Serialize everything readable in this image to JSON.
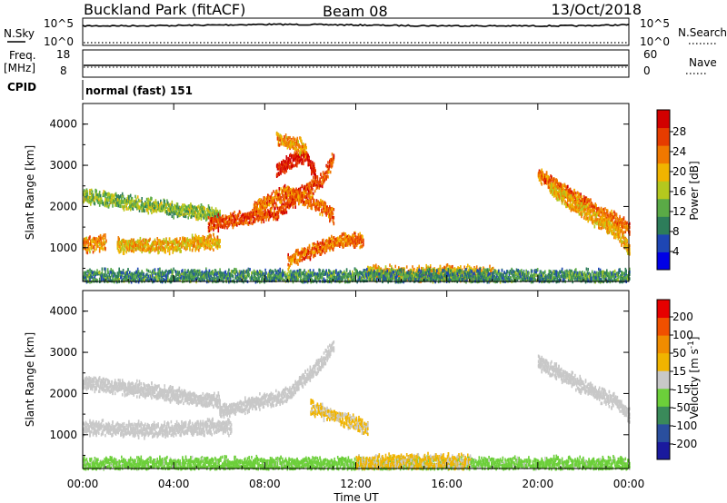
{
  "header": {
    "title": "Buckland Park (fitACF)",
    "beam": "Beam 08",
    "date": "13/Oct/2018"
  },
  "noise_panel": {
    "left_label": "N.Sky",
    "right_label": "N.Search",
    "left_ticks": [
      "10^5",
      "10^0"
    ],
    "right_ticks": [
      "10^5",
      "10^0"
    ]
  },
  "freq_panel": {
    "left_label_1": "Freq.",
    "left_label_2": "[MHz]",
    "right_label": "Nave",
    "left_ticks": [
      "18",
      "8"
    ],
    "right_ticks": [
      "60",
      "0"
    ]
  },
  "cpid_panel": {
    "label": "CPID",
    "text": "normal (fast) 151"
  },
  "x_axis": {
    "label": "Time UT",
    "ticks": [
      "00:00",
      "04:00",
      "08:00",
      "12:00",
      "16:00",
      "20:00",
      "00:00"
    ]
  },
  "power_panel": {
    "ylabel": "Slant Range [km]",
    "yticks": [
      "4000",
      "3000",
      "2000",
      "1000"
    ],
    "cbar_label": "Power [dB]",
    "cbar_ticks": [
      "28",
      "24",
      "20",
      "16",
      "12",
      "8",
      "4"
    ],
    "cbar_colors": [
      "#0000e6",
      "#1e46b4",
      "#2d7d5a",
      "#5aaa46",
      "#b4c81e",
      "#f0b400",
      "#f07800",
      "#e63c00",
      "#d20000"
    ]
  },
  "velocity_panel": {
    "ylabel": "Slant Range [km]",
    "yticks": [
      "4000",
      "3000",
      "2000",
      "1000"
    ],
    "cbar_label": "Velocity [m s^-1]",
    "cbar_ticks": [
      "200",
      "100",
      "50",
      "15",
      "-15",
      "-50",
      "-100",
      "-200"
    ],
    "cbar_colors": [
      "#1a1a9e",
      "#2a4f9e",
      "#3a8a5a",
      "#6ccf3a",
      "#c8c8c8",
      "#f0b400",
      "#f08c00",
      "#f05000",
      "#e60000"
    ]
  },
  "chart_data": [
    {
      "type": "line",
      "title": "N.Sky",
      "x_range_hours": [
        0,
        24
      ],
      "y_scale": "log",
      "series": [
        {
          "name": "N.Sky",
          "x": [
            0,
            2,
            4,
            6,
            8,
            10,
            12,
            14,
            16,
            18,
            20,
            22,
            24
          ],
          "y": [
            3000,
            3200,
            3500,
            4500,
            6000,
            5500,
            4500,
            3500,
            3200,
            3000,
            3000,
            3200,
            5000
          ]
        },
        {
          "name": "N.Search",
          "x": [
            0,
            24
          ],
          "y": [
            1,
            1
          ]
        }
      ]
    },
    {
      "type": "line",
      "title": "Freq.",
      "x_range_hours": [
        0,
        24
      ],
      "series": [
        {
          "name": "Freq.",
          "x": [
            0,
            24
          ],
          "y": [
            10,
            10
          ]
        },
        {
          "name": "Nave",
          "x": [
            0,
            24
          ],
          "y": [
            12,
            12
          ]
        }
      ]
    },
    {
      "type": "heatmap",
      "title": "Power",
      "x_range_hours": [
        0,
        24
      ],
      "ylim_km": [
        180,
        4500
      ],
      "value_range_db": [
        0,
        32
      ],
      "regions": [
        {
          "t": [
            0.0,
            1.6,
            1.6,
            1.0
          ],
          "r": [
            1100,
            1200,
            250,
            150
          ],
          "v": 22
        },
        {
          "t": [
            1.5,
            3.8,
            5.5,
            6.0
          ],
          "r": [
            1100,
            1080,
            1200,
            1150
          ],
          "v": 20
        },
        {
          "t": [
            0.0,
            3.5,
            5.0,
            6.0
          ],
          "r": [
            2300,
            2000,
            1900,
            1800
          ],
          "v": 14
        },
        {
          "t": [
            5.5,
            8.5,
            10.5,
            11.0
          ],
          "r": [
            1600,
            1900,
            2700,
            3200
          ],
          "v": 26
        },
        {
          "t": [
            7.5,
            9.0,
            10.5,
            11.0
          ],
          "r": [
            2000,
            2400,
            2000,
            1800
          ],
          "v": 24
        },
        {
          "t": [
            8.5,
            9.0,
            9.8,
            10.2
          ],
          "r": [
            2900,
            3100,
            3300,
            2800
          ],
          "v": 30
        },
        {
          "t": [
            8.5,
            9.0,
            9.5,
            9.8
          ],
          "r": [
            3700,
            3600,
            3500,
            3400
          ],
          "v": 22
        },
        {
          "t": [
            9.0,
            10.2,
            11.5,
            12.3
          ],
          "r": [
            700,
            1000,
            1250,
            1200
          ],
          "v": 24
        },
        {
          "t": [
            12.5,
            14.0,
            16.0,
            18.0
          ],
          "r": [
            420,
            400,
            420,
            380
          ],
          "v": 20
        },
        {
          "t": [
            20.0,
            21.5,
            23.0,
            24.0
          ],
          "r": [
            2800,
            2300,
            1800,
            1500
          ],
          "v": 24
        },
        {
          "t": [
            20.5,
            22.0,
            23.5,
            24.0
          ],
          "r": [
            2500,
            1900,
            1400,
            1000
          ],
          "v": 20
        },
        {
          "t": [
            0.0,
            6.0,
            12.0,
            24.0
          ],
          "r": [
            330,
            330,
            330,
            330
          ],
          "v": 10
        }
      ]
    },
    {
      "type": "heatmap",
      "title": "Velocity",
      "x_range_hours": [
        0,
        24
      ],
      "ylim_km": [
        180,
        4500
      ],
      "value_range_ms": [
        -200,
        200
      ],
      "regions": [
        {
          "t": [
            0.0,
            3.0,
            6.0,
            6.5
          ],
          "r": [
            1200,
            1150,
            1250,
            1200
          ],
          "v": 0
        },
        {
          "t": [
            0.0,
            3.0,
            5.0,
            6.0
          ],
          "r": [
            2300,
            2100,
            1900,
            1850
          ],
          "v": 0
        },
        {
          "t": [
            6.0,
            9.0,
            10.5,
            11.0
          ],
          "r": [
            1600,
            2000,
            2800,
            3200
          ],
          "v": 0
        },
        {
          "t": [
            10.0,
            11.0,
            12.0,
            12.5
          ],
          "r": [
            1700,
            1500,
            1300,
            1200
          ],
          "v": 30
        },
        {
          "t": [
            0.0,
            6.0,
            12.0,
            24.0
          ],
          "r": [
            300,
            320,
            300,
            320
          ],
          "v": -40
        },
        {
          "t": [
            12.0,
            14.0,
            16.0,
            17.0
          ],
          "r": [
            350,
            380,
            400,
            380
          ],
          "v": 30
        },
        {
          "t": [
            20.0,
            22.0,
            23.5,
            24.0
          ],
          "r": [
            2800,
            2200,
            1800,
            1500
          ],
          "v": 0
        }
      ]
    }
  ]
}
